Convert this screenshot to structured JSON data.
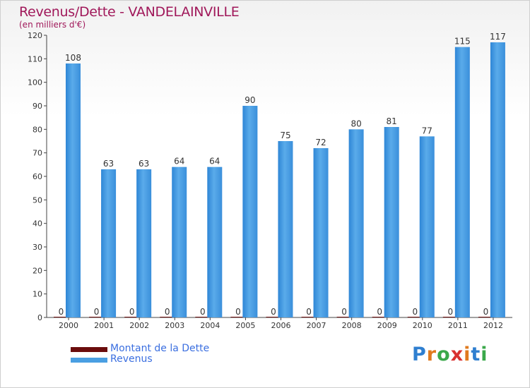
{
  "chart_data": {
    "type": "bar",
    "title": "Revenus/Dette - VANDELAINVILLE",
    "subtitle": "(en milliers d'€)",
    "categories": [
      "2000",
      "2001",
      "2002",
      "2003",
      "2004",
      "2005",
      "2006",
      "2007",
      "2008",
      "2009",
      "2010",
      "2011",
      "2012"
    ],
    "series": [
      {
        "name": "Montant de la Dette",
        "color": "#6b0d0d",
        "values": [
          0,
          0,
          0,
          0,
          0,
          0,
          0,
          0,
          0,
          0,
          0,
          0,
          0
        ]
      },
      {
        "name": "Revenus",
        "color": "#4a9fe2",
        "values": [
          108,
          63,
          63,
          64,
          64,
          90,
          75,
          72,
          80,
          81,
          77,
          115,
          117
        ]
      }
    ],
    "yticks": [
      0,
      10,
      20,
      30,
      40,
      50,
      60,
      70,
      80,
      90,
      100,
      110,
      120
    ],
    "ylim": [
      0,
      120
    ],
    "grid": false,
    "legend": "bottom-left"
  },
  "branding": {
    "logo": "Proxiti"
  }
}
